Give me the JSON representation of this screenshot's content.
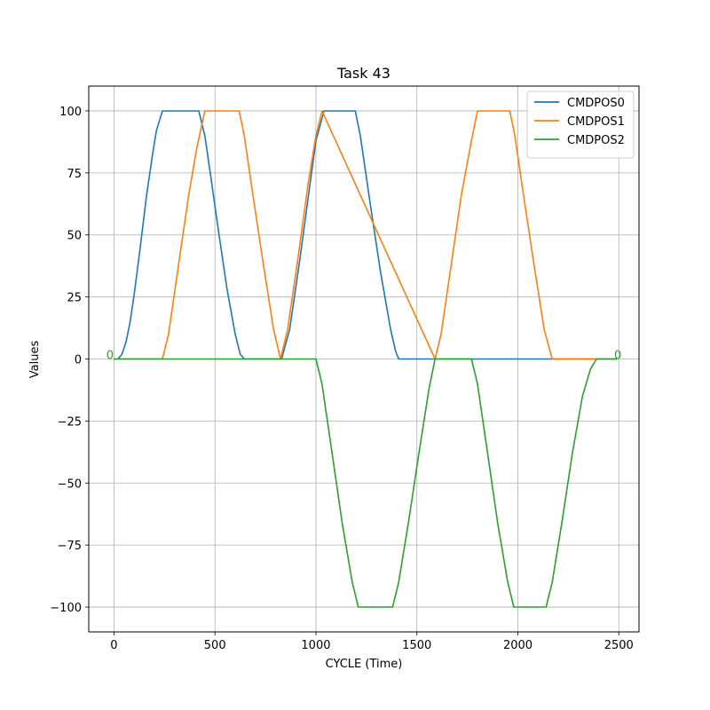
{
  "chart_data": {
    "type": "line",
    "title": "Task 43",
    "xlabel": "CYCLE (Time)",
    "ylabel": "Values",
    "xlim": [
      -125,
      2600
    ],
    "ylim": [
      -110,
      110
    ],
    "xticks": [
      0,
      500,
      1000,
      1500,
      2000,
      2500
    ],
    "xtick_labels": [
      "0",
      "500",
      "1000",
      "1500",
      "2000",
      "2500"
    ],
    "yticks": [
      -100,
      -75,
      -50,
      -25,
      0,
      25,
      50,
      75,
      100
    ],
    "ytick_labels": [
      "−100",
      "−75",
      "−50",
      "−25",
      "0",
      "25",
      "50",
      "75",
      "100"
    ],
    "grid": true,
    "legend_position": "top-right",
    "series": [
      {
        "name": "CMDPOS0",
        "color": "#1f77b4",
        "points": [
          [
            0,
            0
          ],
          [
            20,
            0
          ],
          [
            40,
            2
          ],
          [
            60,
            7
          ],
          [
            80,
            15
          ],
          [
            100,
            26
          ],
          [
            130,
            45
          ],
          [
            160,
            65
          ],
          [
            190,
            82
          ],
          [
            210,
            92
          ],
          [
            240,
            100
          ],
          [
            420,
            100
          ],
          [
            450,
            90
          ],
          [
            480,
            73
          ],
          [
            520,
            50
          ],
          [
            560,
            28
          ],
          [
            600,
            10
          ],
          [
            625,
            2
          ],
          [
            645,
            0
          ],
          [
            830,
            0
          ],
          [
            870,
            12
          ],
          [
            920,
            40
          ],
          [
            970,
            70
          ],
          [
            1000,
            88
          ],
          [
            1030,
            97
          ],
          [
            1040,
            100
          ],
          [
            1195,
            100
          ],
          [
            1220,
            90
          ],
          [
            1270,
            62
          ],
          [
            1320,
            35
          ],
          [
            1370,
            12
          ],
          [
            1395,
            3
          ],
          [
            1410,
            0
          ],
          [
            2490,
            0
          ]
        ]
      },
      {
        "name": "CMDPOS1",
        "color": "#ff7f0e",
        "points": [
          [
            0,
            0
          ],
          [
            240,
            0
          ],
          [
            270,
            10
          ],
          [
            320,
            38
          ],
          [
            370,
            66
          ],
          [
            410,
            85
          ],
          [
            450,
            100
          ],
          [
            620,
            100
          ],
          [
            645,
            90
          ],
          [
            690,
            65
          ],
          [
            740,
            38
          ],
          [
            790,
            12
          ],
          [
            825,
            0
          ],
          [
            860,
            12
          ],
          [
            910,
            40
          ],
          [
            960,
            70
          ],
          [
            1000,
            90
          ],
          [
            1030,
            100
          ],
          [
            1590,
            0
          ],
          [
            1620,
            10
          ],
          [
            1670,
            38
          ],
          [
            1720,
            66
          ],
          [
            1770,
            88
          ],
          [
            1800,
            100
          ],
          [
            1960,
            100
          ],
          [
            1985,
            90
          ],
          [
            2030,
            65
          ],
          [
            2080,
            38
          ],
          [
            2130,
            12
          ],
          [
            2170,
            0
          ],
          [
            2490,
            0
          ]
        ]
      },
      {
        "name": "CMDPOS2",
        "color": "#2ca02c",
        "points": [
          [
            0,
            0
          ],
          [
            1000,
            0
          ],
          [
            1030,
            -10
          ],
          [
            1080,
            -38
          ],
          [
            1130,
            -66
          ],
          [
            1180,
            -90
          ],
          [
            1210,
            -100
          ],
          [
            1380,
            -100
          ],
          [
            1410,
            -90
          ],
          [
            1460,
            -65
          ],
          [
            1510,
            -38
          ],
          [
            1560,
            -12
          ],
          [
            1590,
            0
          ],
          [
            1770,
            0
          ],
          [
            1800,
            -10
          ],
          [
            1850,
            -38
          ],
          [
            1900,
            -66
          ],
          [
            1950,
            -90
          ],
          [
            1980,
            -100
          ],
          [
            2140,
            -100
          ],
          [
            2170,
            -90
          ],
          [
            2220,
            -65
          ],
          [
            2270,
            -38
          ],
          [
            2320,
            -15
          ],
          [
            2360,
            -4
          ],
          [
            2390,
            0
          ],
          [
            2490,
            0
          ]
        ]
      }
    ],
    "annotations": [
      {
        "text": "0",
        "x": -20,
        "y": 0,
        "color": "#2ca02c"
      },
      {
        "text": "0",
        "x": 2495,
        "y": 0,
        "color": "#2ca02c"
      }
    ]
  }
}
